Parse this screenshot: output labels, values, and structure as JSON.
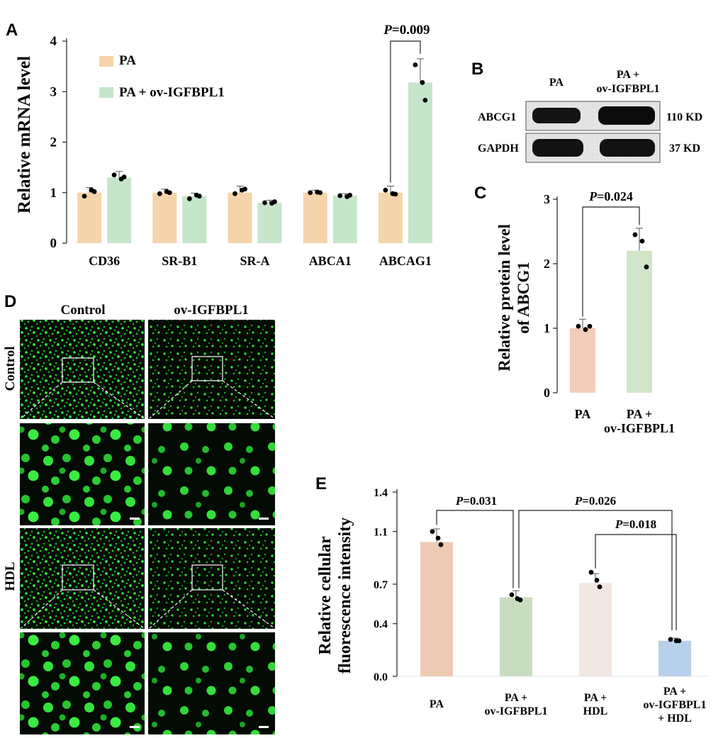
{
  "panels": {
    "A": {
      "letter": "A",
      "chart_data": {
        "type": "bar",
        "categories": [
          "CD36",
          "SR-B1",
          "SR-A",
          "ABCA1",
          "ABCAG1"
        ],
        "series": [
          {
            "name": "PA",
            "values": [
              1.0,
              1.0,
              1.0,
              1.0,
              1.0
            ],
            "errors": [
              0.1,
              0.07,
              0.13,
              0.05,
              0.13
            ],
            "points": [
              [
                0.93,
                1.05,
                1.02
              ],
              [
                0.98,
                1.02,
                1.0
              ],
              [
                0.98,
                1.05,
                1.07
              ],
              [
                1.0,
                1.01,
                1.0
              ],
              [
                1.05,
                0.98,
                0.97
              ]
            ],
            "color": "#f5d4ab"
          },
          {
            "name": "PA + ov-IGFBPL1",
            "values": [
              1.3,
              0.93,
              0.8,
              0.94,
              3.18
            ],
            "errors": [
              0.12,
              0.06,
              0.05,
              0.04,
              0.47
            ],
            "points": [
              [
                1.35,
                1.27,
                1.31
              ],
              [
                0.88,
                0.95,
                0.93
              ],
              [
                0.8,
                0.79,
                0.82
              ],
              [
                0.94,
                0.92,
                0.95
              ],
              [
                3.53,
                3.18,
                2.83
              ]
            ],
            "color": "#c5e6cb"
          }
        ],
        "ylabel": "Relative mRNA level",
        "ylim": [
          0,
          4
        ],
        "yticks": [
          "0",
          "1",
          "2",
          "3",
          "4"
        ],
        "annotations": [
          {
            "label_p": "P",
            "label_rest": "=0.009",
            "from": 4,
            "to": 4
          }
        ],
        "legend_position": "top-left"
      }
    },
    "B": {
      "letter": "B",
      "columns": [
        "PA",
        "PA +",
        "ov-IGFBPL1"
      ],
      "rows": [
        {
          "label": "ABCG1",
          "size": "110 KD"
        },
        {
          "label": "GAPDH",
          "size": "37 KD"
        }
      ]
    },
    "C": {
      "letter": "C",
      "chart_data": {
        "type": "bar",
        "categories": [
          [
            "PA"
          ],
          [
            "PA +",
            "ov-IGFBPL1"
          ]
        ],
        "values": [
          1.0,
          2.2
        ],
        "errors": [
          0.14,
          0.35
        ],
        "points": [
          [
            1.03,
            0.98,
            1.03
          ],
          [
            2.45,
            2.35,
            1.95
          ]
        ],
        "colors": [
          "#f2cdb9",
          "#cfe6c9"
        ],
        "ylabel": [
          "Relative protein level",
          "of ABCG1"
        ],
        "ylim": [
          0,
          3
        ],
        "yticks": [
          "0",
          "1",
          "2",
          "3"
        ],
        "annotations": [
          {
            "label_p": "P",
            "label_rest": "=0.024"
          }
        ]
      }
    },
    "D": {
      "letter": "D",
      "column_labels": [
        "Control",
        "ov-IGFBPL1"
      ],
      "row_labels": [
        "Control",
        "HDL"
      ]
    },
    "E": {
      "letter": "E",
      "chart_data": {
        "type": "bar",
        "categories": [
          [
            "PA"
          ],
          [
            "PA +",
            "ov-IGFBPL1"
          ],
          [
            "PA +",
            "HDL"
          ],
          [
            "PA +",
            "ov-IGFBPL1",
            "+ HDL"
          ]
        ],
        "values": [
          1.02,
          0.6,
          0.71,
          0.27
        ],
        "errors": [
          0.1,
          0.05,
          0.07,
          0.02
        ],
        "points": [
          [
            1.1,
            1.05,
            1.0
          ],
          [
            0.62,
            0.59,
            0.58
          ],
          [
            0.79,
            0.73,
            0.68
          ],
          [
            0.28,
            0.27,
            0.27
          ]
        ],
        "colors": [
          "#efcab3",
          "#c8ddc0",
          "#f2e6e2",
          "#b7d1ea"
        ],
        "ylabel": [
          "Relative cellular",
          "fluorescence intensity"
        ],
        "ylim": [
          0,
          1.4
        ],
        "yticks": [
          "0.0",
          "0.4",
          "0.7",
          "1.1",
          "1.4"
        ],
        "annotations": [
          {
            "label_p": "P",
            "label_rest": "=0.031",
            "from": 0,
            "to": 1
          },
          {
            "label_p": "P",
            "label_rest": "=0.026",
            "from": 1,
            "to": 3
          },
          {
            "label_p": "P",
            "label_rest": "=0.018",
            "from": 2,
            "to": 3
          }
        ]
      }
    }
  }
}
